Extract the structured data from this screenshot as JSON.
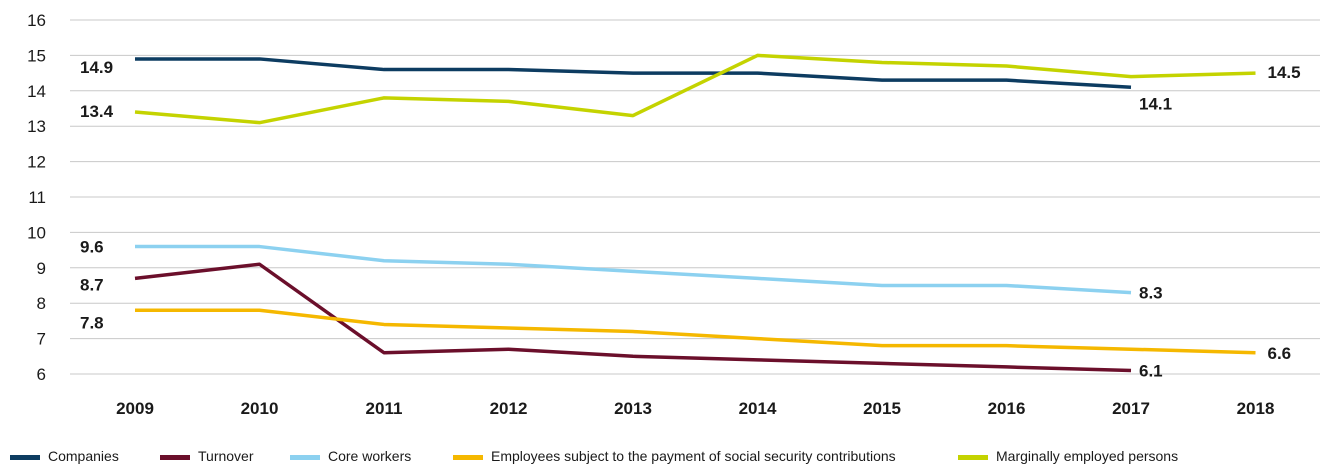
{
  "chart_data": {
    "type": "line",
    "title": "",
    "xlabel": "",
    "ylabel": "",
    "x": [
      "2009",
      "2010",
      "2011",
      "2012",
      "2013",
      "2014",
      "2015",
      "2016",
      "2017",
      "2018"
    ],
    "ylim": [
      6,
      16
    ],
    "yticks": [
      "6",
      "7",
      "8",
      "9",
      "10",
      "11",
      "12",
      "13",
      "14",
      "15",
      "16"
    ],
    "grid": true,
    "legend_position": "bottom",
    "series": [
      {
        "name": "Companies",
        "color": "#0d3c61",
        "values": [
          14.9,
          14.9,
          14.6,
          14.6,
          14.5,
          14.5,
          14.3,
          14.3,
          14.1,
          null
        ]
      },
      {
        "name": "Turnover",
        "color": "#6b0f2b",
        "values": [
          8.7,
          9.1,
          6.6,
          6.7,
          6.5,
          6.4,
          6.3,
          6.2,
          6.1,
          null
        ]
      },
      {
        "name": "Core workers",
        "color": "#8cd1f0",
        "values": [
          9.6,
          9.6,
          9.2,
          9.1,
          8.9,
          8.7,
          8.5,
          8.5,
          8.3,
          null
        ]
      },
      {
        "name": "Employees subject to the payment of social security contributions",
        "color": "#f5b800",
        "values": [
          7.8,
          7.8,
          7.4,
          7.3,
          7.2,
          7.0,
          6.8,
          6.8,
          6.7,
          6.6
        ]
      },
      {
        "name": "Marginally employed persons",
        "color": "#c4d300",
        "values": [
          13.4,
          13.1,
          13.8,
          13.7,
          13.3,
          15.0,
          14.8,
          14.7,
          14.4,
          14.5
        ]
      }
    ],
    "annotations": [
      {
        "text": "14.9",
        "series": 0,
        "x": "2009",
        "y": 14.9
      },
      {
        "text": "14.1",
        "series": 0,
        "x": "2017",
        "y": 14.1
      },
      {
        "text": "13.4",
        "series": 4,
        "x": "2009",
        "y": 13.4
      },
      {
        "text": "14.5",
        "series": 4,
        "x": "2018",
        "y": 14.5
      },
      {
        "text": "9.6",
        "series": 2,
        "x": "2009",
        "y": 9.6
      },
      {
        "text": "8.3",
        "series": 2,
        "x": "2017",
        "y": 8.3
      },
      {
        "text": "8.7",
        "series": 1,
        "x": "2009",
        "y": 8.7
      },
      {
        "text": "6.1",
        "series": 1,
        "x": "2017",
        "y": 6.1
      },
      {
        "text": "7.8",
        "series": 3,
        "x": "2009",
        "y": 7.8
      },
      {
        "text": "6.6",
        "series": 3,
        "x": "2018",
        "y": 6.6
      }
    ]
  }
}
